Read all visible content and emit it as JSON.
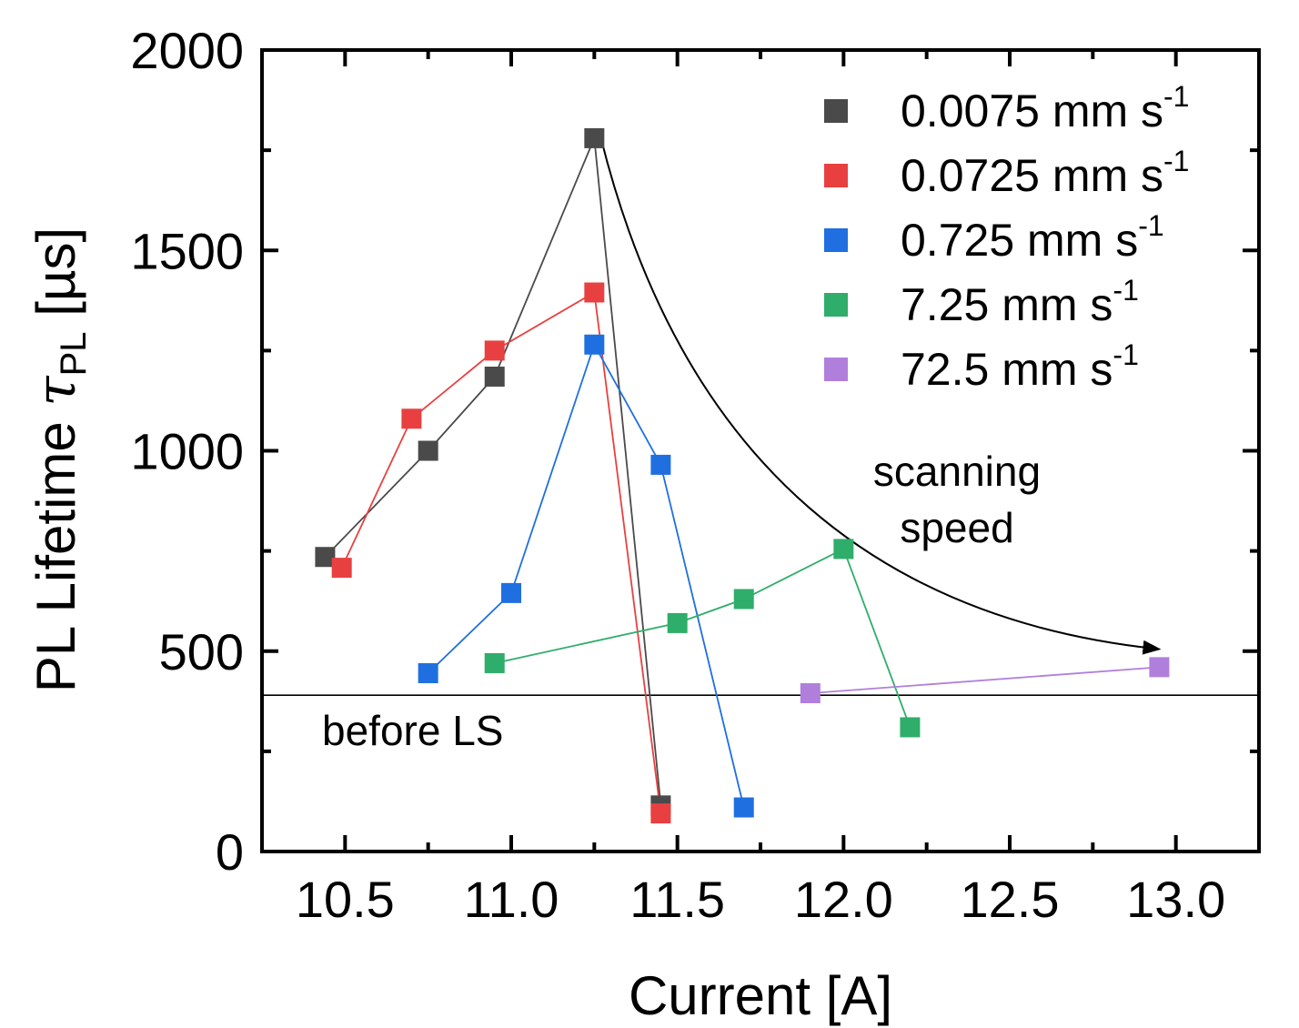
{
  "chart_data": {
    "type": "scatter",
    "xlabel": "Current [A]",
    "ylabel": {
      "main": "PL Lifetime ",
      "symbol": "τ",
      "sub": "PL",
      "unit": " [µs]"
    },
    "xlim": [
      10.25,
      13.25
    ],
    "ylim": [
      0,
      2000
    ],
    "x_ticks": [
      10.5,
      11.0,
      11.5,
      12.0,
      12.5,
      13.0
    ],
    "x_tick_labels": [
      "10.5",
      "11.0",
      "11.5",
      "12.0",
      "12.5",
      "13.0"
    ],
    "y_ticks": [
      0,
      500,
      1000,
      1500,
      2000
    ],
    "y_tick_labels": [
      "0",
      "500",
      "1000",
      "1500",
      "2000"
    ],
    "legend_position": "top-right",
    "series": [
      {
        "name": "0.0075 mm s",
        "sup": "-1",
        "color": "#4a4a4a",
        "x": [
          10.44,
          10.75,
          10.95,
          11.25,
          11.45
        ],
        "y": [
          735,
          1000,
          1185,
          1780,
          115
        ]
      },
      {
        "name": "0.0725 mm s",
        "sup": "-1",
        "color": "#e84040",
        "x": [
          10.49,
          10.7,
          10.95,
          11.25,
          11.45
        ],
        "y": [
          708,
          1080,
          1250,
          1395,
          95
        ]
      },
      {
        "name": "0.725 mm s",
        "sup": "-1",
        "color": "#1f6fe0",
        "x": [
          10.75,
          11.0,
          11.25,
          11.45,
          11.7
        ],
        "y": [
          445,
          645,
          1265,
          965,
          110
        ]
      },
      {
        "name": "7.25 mm s",
        "sup": "-1",
        "color": "#2fad6a",
        "x": [
          10.95,
          11.5,
          11.7,
          12.0,
          12.2
        ],
        "y": [
          470,
          570,
          630,
          755,
          310
        ]
      },
      {
        "name": "72.5 mm s",
        "sup": "-1",
        "color": "#b07fdc",
        "x": [
          11.9,
          12.95
        ],
        "y": [
          395,
          460
        ]
      }
    ],
    "reference_line": {
      "y": 390,
      "label": "before LS"
    },
    "annotations": [
      {
        "lines": [
          "scanning",
          "speed"
        ]
      }
    ],
    "arrow": {
      "from": [
        11.27,
        1780
      ],
      "control": [
        11.62,
        620
      ],
      "to": [
        12.95,
        505
      ]
    }
  }
}
